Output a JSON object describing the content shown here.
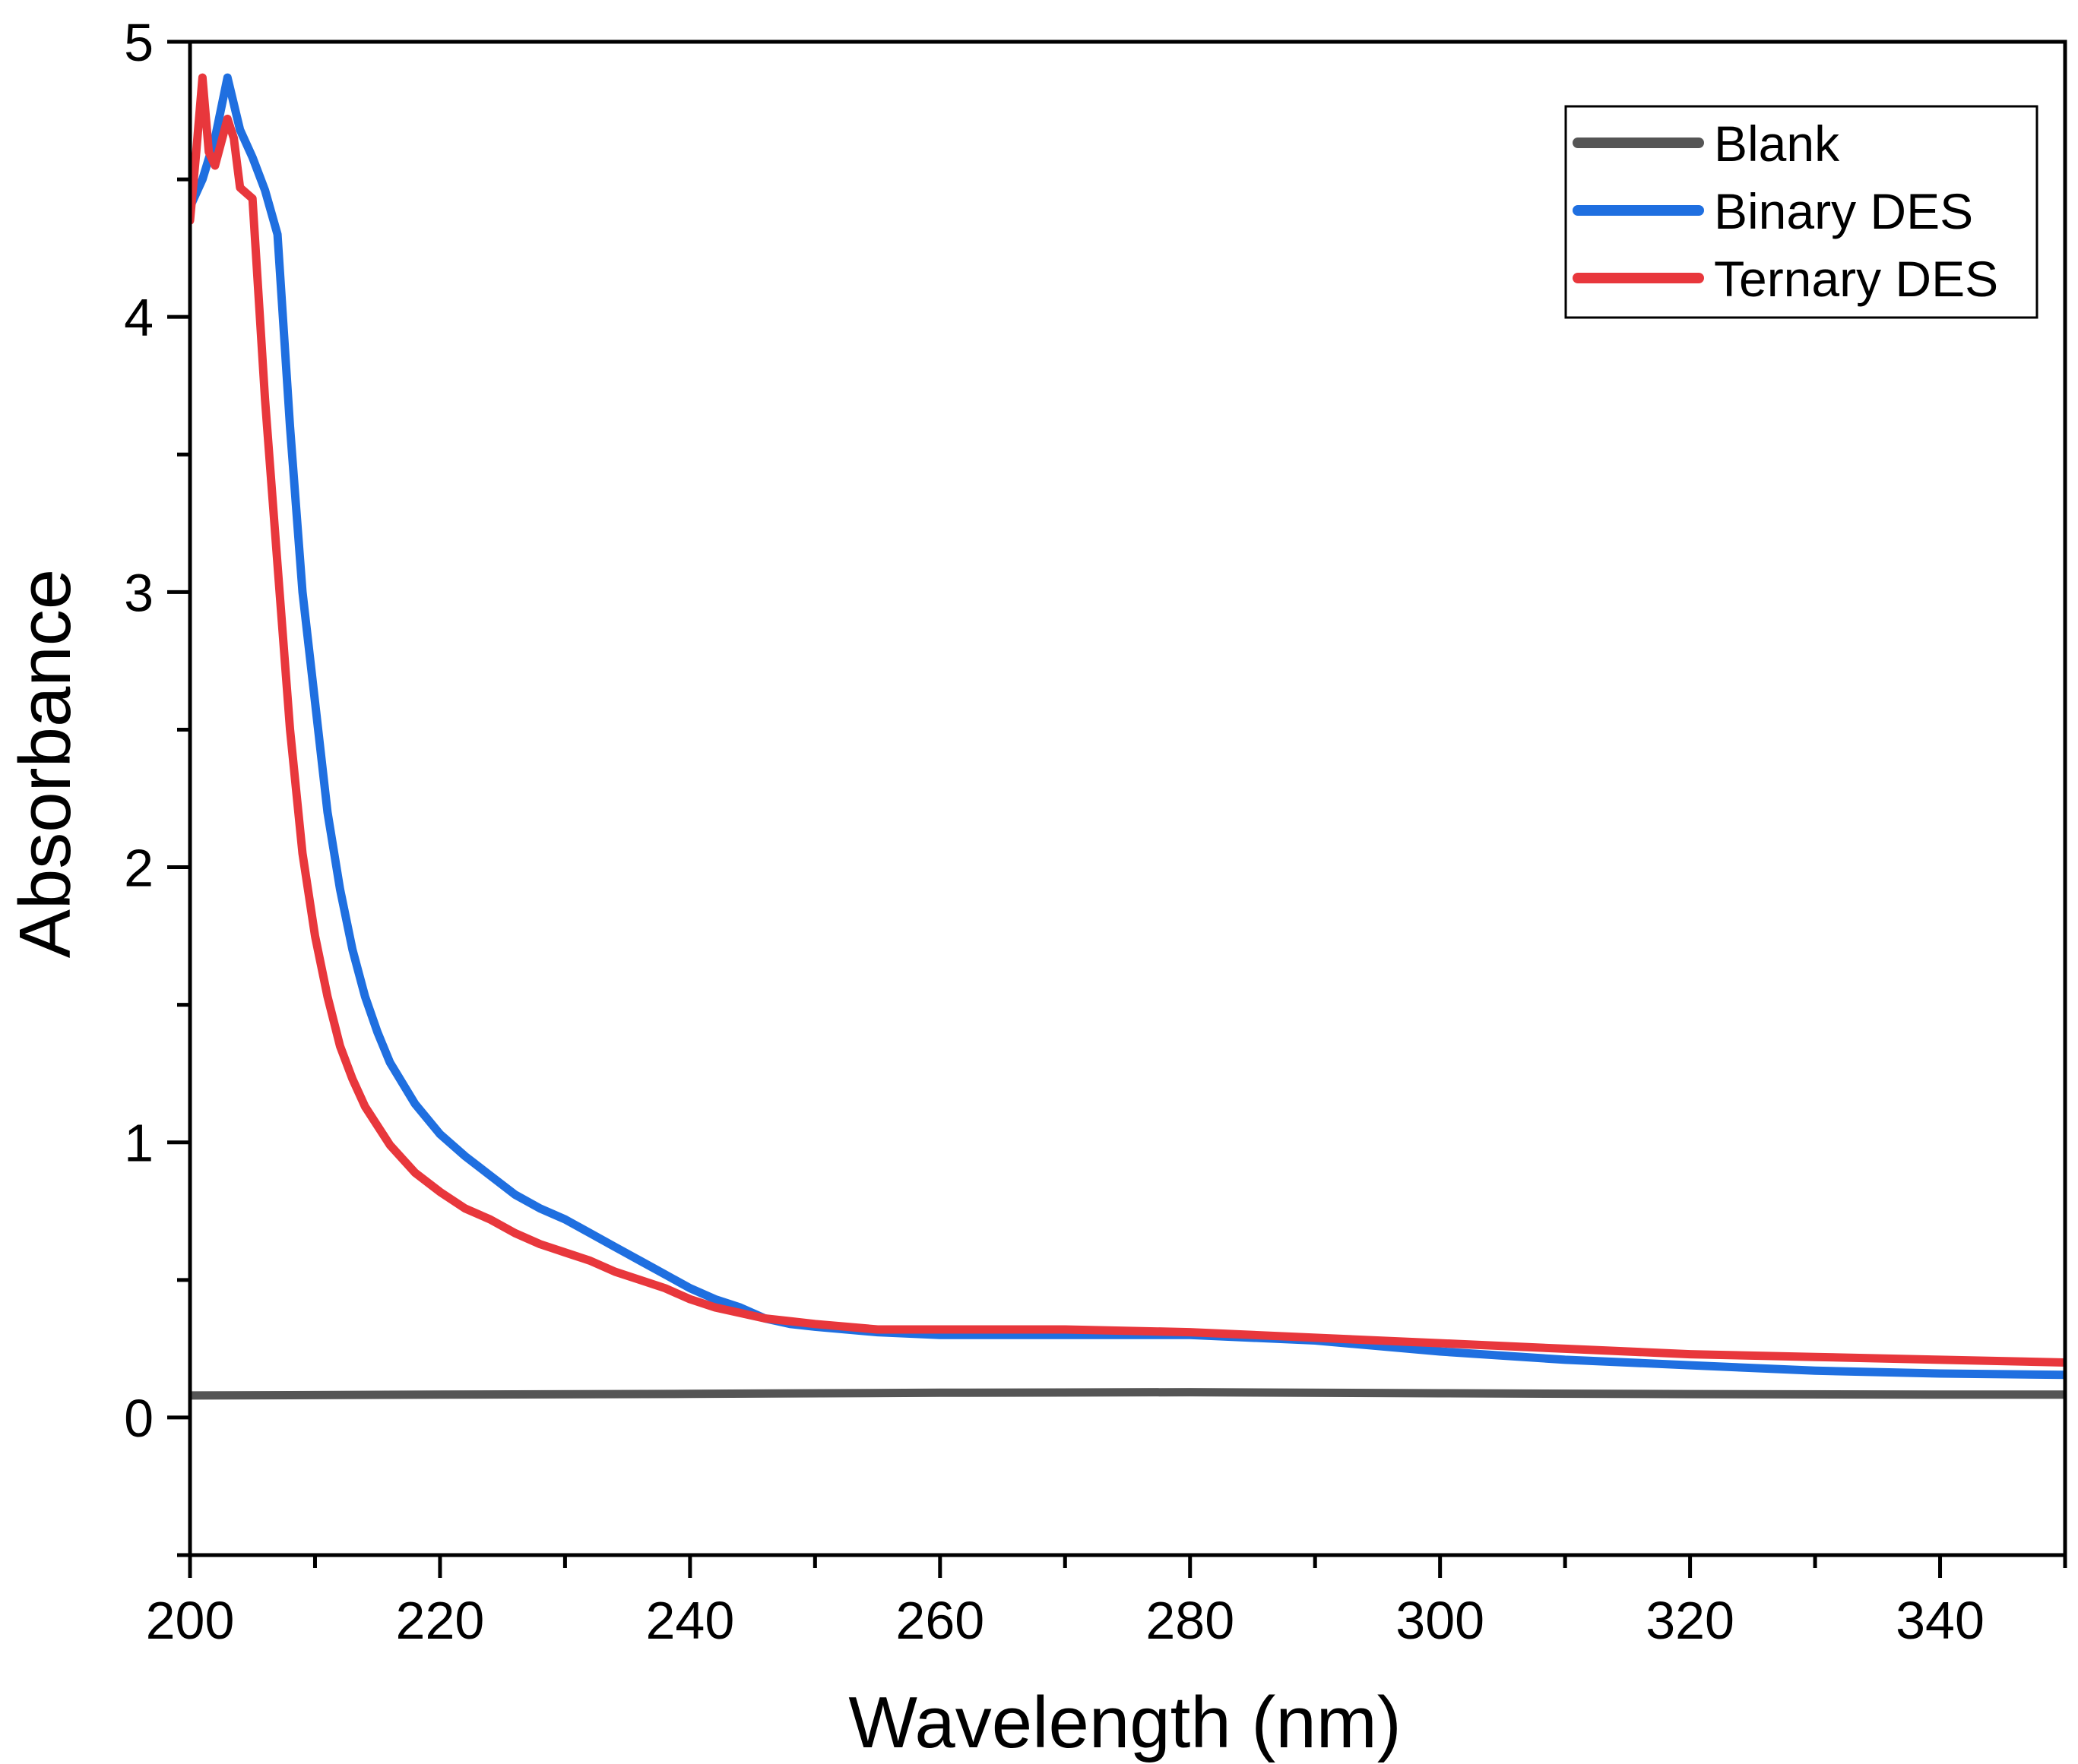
{
  "chart_data": {
    "type": "line",
    "title": "",
    "xlabel": "Wavelength (nm)",
    "ylabel": "Absorbance",
    "xlim": [
      200,
      350
    ],
    "ylim": [
      -0.5,
      5
    ],
    "xticks": [
      200,
      220,
      240,
      260,
      280,
      300,
      320,
      340
    ],
    "yticks": [
      0,
      1,
      2,
      3,
      4,
      5
    ],
    "x_minor_step": 10,
    "y_minor_step": 0.5,
    "grid": false,
    "legend_position": "top-right",
    "series": [
      {
        "name": "Blank",
        "color": "#555555",
        "points": [
          [
            200,
            0.08
          ],
          [
            220,
            0.083
          ],
          [
            240,
            0.086
          ],
          [
            260,
            0.09
          ],
          [
            280,
            0.092
          ],
          [
            300,
            0.088
          ],
          [
            320,
            0.085
          ],
          [
            340,
            0.083
          ],
          [
            350,
            0.083
          ]
        ]
      },
      {
        "name": "Binary DES",
        "color": "#1f6fe0",
        "points": [
          [
            200,
            4.4
          ],
          [
            201,
            4.5
          ],
          [
            202,
            4.65
          ],
          [
            203,
            4.87
          ],
          [
            204,
            4.68
          ],
          [
            205,
            4.58
          ],
          [
            206,
            4.46
          ],
          [
            207,
            4.3
          ],
          [
            208,
            3.6
          ],
          [
            209,
            3.0
          ],
          [
            210,
            2.6
          ],
          [
            211,
            2.2
          ],
          [
            212,
            1.92
          ],
          [
            213,
            1.7
          ],
          [
            214,
            1.53
          ],
          [
            215,
            1.4
          ],
          [
            216,
            1.29
          ],
          [
            218,
            1.14
          ],
          [
            220,
            1.03
          ],
          [
            222,
            0.95
          ],
          [
            224,
            0.88
          ],
          [
            226,
            0.81
          ],
          [
            228,
            0.76
          ],
          [
            230,
            0.72
          ],
          [
            232,
            0.67
          ],
          [
            234,
            0.62
          ],
          [
            236,
            0.57
          ],
          [
            238,
            0.52
          ],
          [
            240,
            0.47
          ],
          [
            242,
            0.43
          ],
          [
            244,
            0.4
          ],
          [
            246,
            0.36
          ],
          [
            248,
            0.34
          ],
          [
            250,
            0.33
          ],
          [
            255,
            0.31
          ],
          [
            260,
            0.3
          ],
          [
            270,
            0.3
          ],
          [
            280,
            0.3
          ],
          [
            290,
            0.28
          ],
          [
            300,
            0.24
          ],
          [
            310,
            0.21
          ],
          [
            320,
            0.19
          ],
          [
            330,
            0.17
          ],
          [
            340,
            0.16
          ],
          [
            350,
            0.155
          ]
        ]
      },
      {
        "name": "Ternary DES",
        "color": "#e8373c",
        "points": [
          [
            200,
            4.35
          ],
          [
            200.5,
            4.6
          ],
          [
            201,
            4.87
          ],
          [
            201.5,
            4.6
          ],
          [
            202,
            4.55
          ],
          [
            203,
            4.72
          ],
          [
            203.5,
            4.65
          ],
          [
            204,
            4.47
          ],
          [
            205,
            4.43
          ],
          [
            206,
            3.7
          ],
          [
            207,
            3.1
          ],
          [
            208,
            2.5
          ],
          [
            209,
            2.05
          ],
          [
            210,
            1.75
          ],
          [
            211,
            1.53
          ],
          [
            212,
            1.35
          ],
          [
            213,
            1.23
          ],
          [
            214,
            1.13
          ],
          [
            216,
            0.99
          ],
          [
            218,
            0.89
          ],
          [
            220,
            0.82
          ],
          [
            222,
            0.76
          ],
          [
            224,
            0.72
          ],
          [
            226,
            0.67
          ],
          [
            228,
            0.63
          ],
          [
            230,
            0.6
          ],
          [
            232,
            0.57
          ],
          [
            234,
            0.53
          ],
          [
            236,
            0.5
          ],
          [
            238,
            0.47
          ],
          [
            240,
            0.43
          ],
          [
            242,
            0.4
          ],
          [
            244,
            0.38
          ],
          [
            246,
            0.36
          ],
          [
            248,
            0.35
          ],
          [
            250,
            0.34
          ],
          [
            255,
            0.32
          ],
          [
            260,
            0.32
          ],
          [
            270,
            0.32
          ],
          [
            280,
            0.31
          ],
          [
            290,
            0.29
          ],
          [
            300,
            0.27
          ],
          [
            310,
            0.25
          ],
          [
            320,
            0.23
          ],
          [
            330,
            0.22
          ],
          [
            340,
            0.21
          ],
          [
            350,
            0.2
          ]
        ]
      }
    ]
  }
}
